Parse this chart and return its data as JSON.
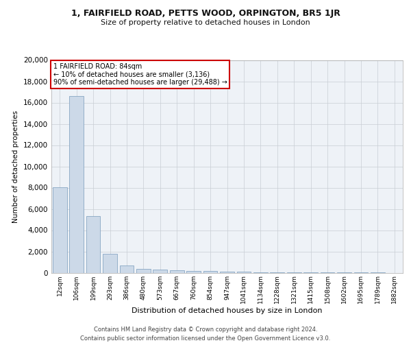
{
  "title": "1, FAIRFIELD ROAD, PETTS WOOD, ORPINGTON, BR5 1JR",
  "subtitle": "Size of property relative to detached houses in London",
  "xlabel": "Distribution of detached houses by size in London",
  "ylabel": "Number of detached properties",
  "bar_color": "#ccd9e8",
  "bar_edge_color": "#7799bb",
  "annotation_box_text": "1 FAIRFIELD ROAD: 84sqm\n← 10% of detached houses are smaller (3,136)\n90% of semi-detached houses are larger (29,488) →",
  "annotation_box_color": "#ffffff",
  "annotation_box_edge_color": "#cc0000",
  "footer_line1": "Contains HM Land Registry data © Crown copyright and database right 2024.",
  "footer_line2": "Contains public sector information licensed under the Open Government Licence v3.0.",
  "bins": [
    "12sqm",
    "106sqm",
    "199sqm",
    "293sqm",
    "386sqm",
    "480sqm",
    "573sqm",
    "667sqm",
    "760sqm",
    "854sqm",
    "947sqm",
    "1041sqm",
    "1134sqm",
    "1228sqm",
    "1321sqm",
    "1415sqm",
    "1508sqm",
    "1602sqm",
    "1695sqm",
    "1789sqm",
    "1882sqm"
  ],
  "values": [
    8050,
    16600,
    5300,
    1750,
    650,
    380,
    290,
    235,
    175,
    140,
    110,
    80,
    60,
    45,
    30,
    20,
    14,
    10,
    7,
    5,
    0
  ],
  "ylim": [
    0,
    20000
  ],
  "yticks": [
    0,
    2000,
    4000,
    6000,
    8000,
    10000,
    12000,
    14000,
    16000,
    18000,
    20000
  ],
  "background_color": "#eef2f7",
  "grid_color": "#c8cdd4",
  "title_fontsize": 9,
  "subtitle_fontsize": 8,
  "ylabel_fontsize": 7.5,
  "xlabel_fontsize": 8,
  "ytick_fontsize": 7.5,
  "xtick_fontsize": 6.5,
  "footer_fontsize": 6
}
